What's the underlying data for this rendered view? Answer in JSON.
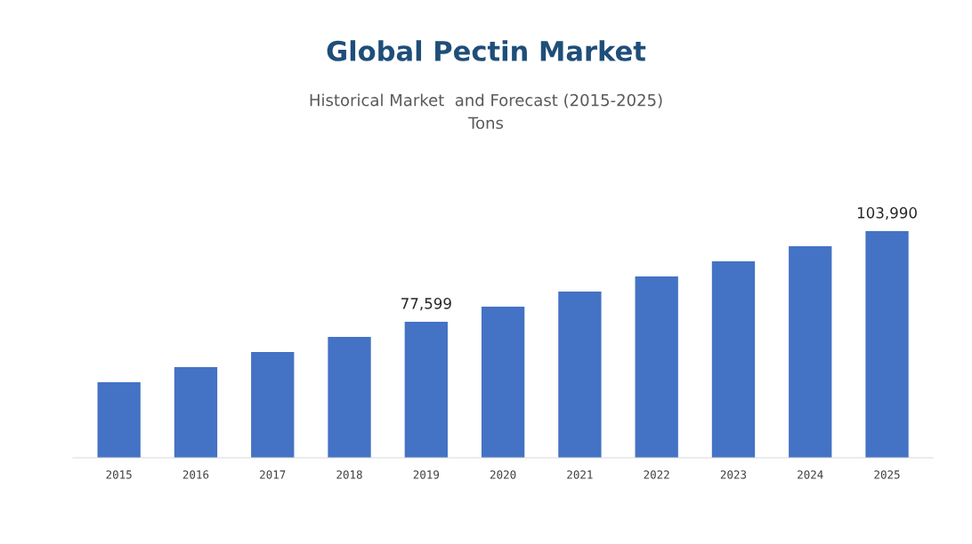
{
  "chart_data": {
    "type": "bar",
    "title": "Global Pectin Market",
    "subtitle": "Historical Market  and Forecast (2015-2025)\nTons",
    "categories": [
      "2015",
      "2016",
      "2017",
      "2018",
      "2019",
      "2020",
      "2021",
      "2022",
      "2023",
      "2024",
      "2025"
    ],
    "values": [
      60000,
      64400,
      68800,
      73200,
      77599,
      82000,
      86400,
      90800,
      95200,
      99600,
      103990
    ],
    "value_labels": [
      null,
      null,
      null,
      null,
      "77,599",
      null,
      null,
      null,
      null,
      null,
      "103,990"
    ],
    "color": "#4472c4",
    "ylim": [
      38000,
      103990
    ],
    "grid": false,
    "legend": false
  }
}
